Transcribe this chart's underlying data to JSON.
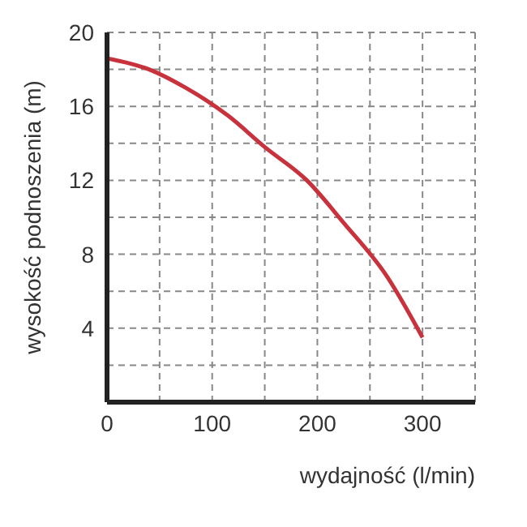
{
  "chart_data": {
    "type": "line",
    "xlabel": "wydajność (l/min)",
    "ylabel": "wysokość podnoszenia (m)",
    "x": [
      0,
      40,
      75,
      115,
      150,
      190,
      225,
      265,
      300
    ],
    "series": [
      {
        "color": "#c8323c",
        "values": [
          18.6,
          18,
          17,
          15.5,
          13.8,
          12,
          9.7,
          6.9,
          3.5
        ]
      }
    ],
    "xlim": [
      0,
      350
    ],
    "ylim": [
      0,
      20
    ],
    "xticks": [
      0,
      {
        "value": 50,
        "label": null
      },
      100,
      {
        "value": 150,
        "label": null
      },
      200,
      {
        "value": 250,
        "label": null
      },
      300,
      {
        "value": 350,
        "label": null
      }
    ],
    "yticks": [
      {
        "value": 2,
        "label": null
      },
      4,
      {
        "value": 6,
        "label": null
      },
      8,
      {
        "value": 10,
        "label": null
      },
      12,
      {
        "value": 14,
        "label": null
      },
      16,
      {
        "value": 18,
        "label": null
      },
      20
    ],
    "grid": true,
    "marker": "none",
    "line_style": "solid"
  }
}
